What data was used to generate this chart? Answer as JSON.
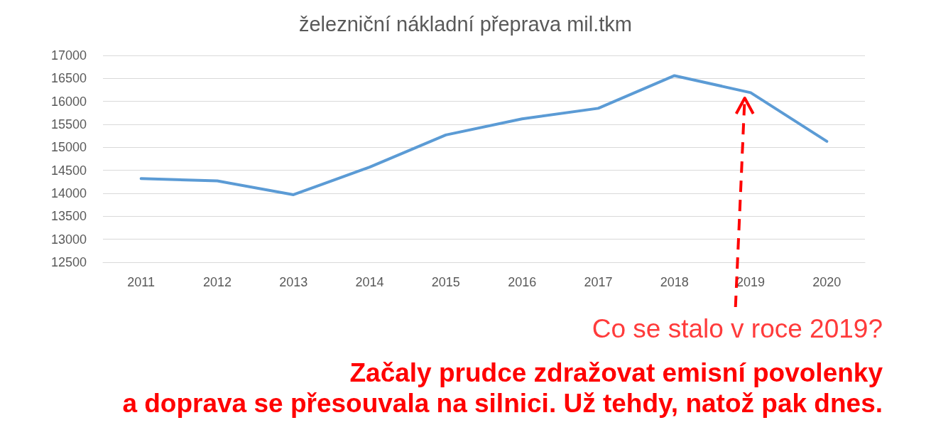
{
  "chart_data": {
    "type": "line",
    "title": "železniční nákladní přeprava mil.tkm",
    "categories": [
      "2011",
      "2012",
      "2013",
      "2014",
      "2015",
      "2016",
      "2017",
      "2018",
      "2019",
      "2020"
    ],
    "values": [
      14320,
      14270,
      13970,
      14570,
      15270,
      15620,
      15850,
      16560,
      16190,
      15130
    ],
    "color": "#5b9bd5",
    "ylim": [
      12500,
      17000
    ],
    "yticks": [
      12500,
      13000,
      13500,
      14000,
      14500,
      15000,
      15500,
      16000,
      16500,
      17000
    ],
    "grid": "y",
    "marker": "none",
    "line_style": "solid",
    "annotations": [
      "Co se stalo v roce 2019?",
      "Začaly prudce zdražovat emisní povolenky",
      "a doprava se přesouvala na silnici. Už tehdy, natož pak dnes."
    ]
  }
}
